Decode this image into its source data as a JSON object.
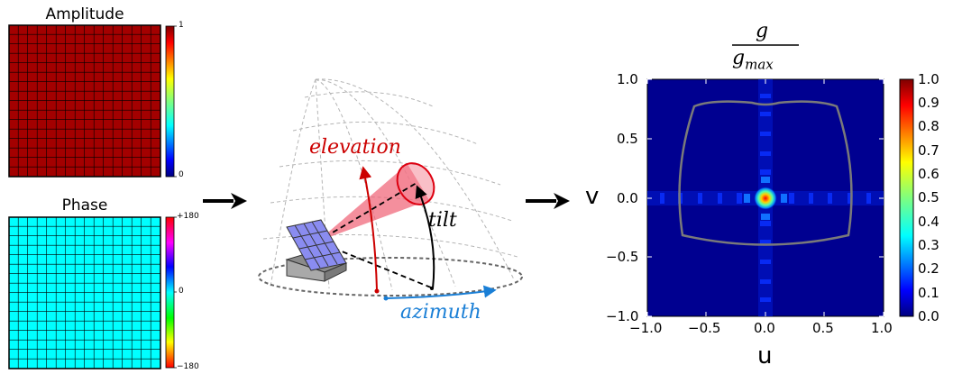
{
  "amplitude": {
    "title": "Amplitude",
    "fill_color": "#a30000",
    "cbar_max": "1",
    "cbar_min": "0"
  },
  "phase": {
    "title": "Phase",
    "fill_color": "#00ffff",
    "cbar_max": "+180",
    "cbar_mid": "0",
    "cbar_min": "−180"
  },
  "diagram": {
    "elevation_label": "elevation",
    "tilt_label": "tilt",
    "azimuth_label": "azimuth",
    "colors": {
      "elevation": "#cc0000",
      "azimuth": "#1a7fd6",
      "tilt": "#000000",
      "beam": "#f06074",
      "panel": "#8a8cf0"
    }
  },
  "gain_plot": {
    "title_numerator": "g",
    "title_denominator": "g",
    "title_subscript": "max",
    "xlabel": "u",
    "ylabel": "v",
    "xticks": [
      "−1.0",
      "−0.5",
      "0.0",
      "0.5",
      "1.0"
    ],
    "yticks": [
      "1.0",
      "0.5",
      "0.0",
      "−0.5",
      "−1.0"
    ],
    "cbar_ticks": [
      "1.0",
      "0.9",
      "0.8",
      "0.7",
      "0.6",
      "0.5",
      "0.4",
      "0.3",
      "0.2",
      "0.1",
      "0.0"
    ]
  },
  "chart_data": {
    "type": "heatmap",
    "title": "g / g_max",
    "xlabel": "u",
    "ylabel": "v",
    "xlim": [
      -1.0,
      1.0
    ],
    "ylim": [
      -1.0,
      1.0
    ],
    "clim": [
      0.0,
      1.0
    ],
    "peak": {
      "u": 0.0,
      "v": 0.0,
      "value": 1.0
    },
    "background_value": 0.0
  }
}
